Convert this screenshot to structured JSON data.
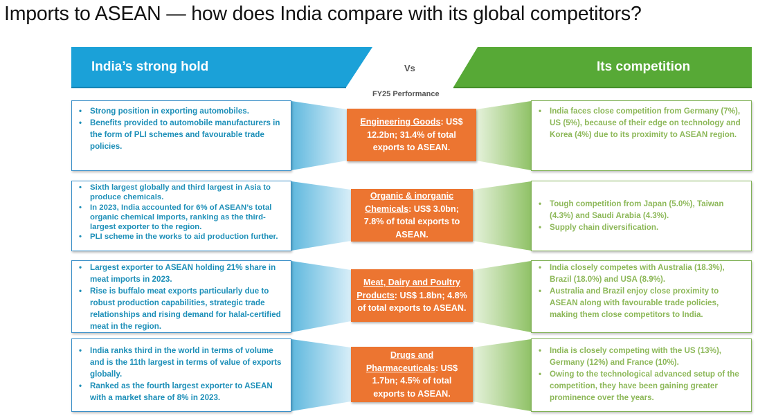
{
  "title": "Imports to ASEAN — how does India compare with its global competitors?",
  "banner": {
    "left": "India’s strong hold",
    "vs": "Vs",
    "right": "Its competition"
  },
  "period_label": "FY25 Performance",
  "colors": {
    "blue_banner": "#1ba1d8",
    "green_banner": "#57a936",
    "left_text": "#1d8fb8",
    "right_text": "#8db859",
    "center_box": "#ec7531"
  },
  "rows": [
    {
      "left": [
        "Strong position in exporting automobiles.",
        "Benefits provided to automobile manufacturers in the form of PLI schemes and favourable trade policies."
      ],
      "center": {
        "category": "Engineering Goods",
        "detail": ": US$ 12.2bn; 31.4% of total exports to ASEAN."
      },
      "right": [
        "India faces close competition from Germany (7%), US (5%), because of their edge on technology and Korea (4%) due to its proximity to ASEAN region."
      ]
    },
    {
      "left": [
        "Sixth largest globally and third largest in Asia to produce chemicals.",
        "In 2023, India accounted for 6% of ASEAN’s total organic chemical imports, ranking as the third-largest exporter to the region.",
        "PLI scheme in the works to aid production further."
      ],
      "center": {
        "category": "Organic & inorganic Chemicals",
        "detail": ": US$ 3.0bn; 7.8% of total exports to ASEAN."
      },
      "right": [
        "Tough competition from Japan (5.0%), Taiwan (4.3%) and Saudi Arabia (4.3%).",
        "Supply chain diversification."
      ]
    },
    {
      "left": [
        "Largest exporter to ASEAN holding 21% share in meat imports in 2023.",
        "Rise is buffalo meat exports particularly due to robust production capabilities, strategic trade relationships and rising demand for halal-certified meat in the region."
      ],
      "center": {
        "category": "Meat, Dairy and Poultry Products",
        "detail": ": US$ 1.8bn; 4.8% of total exports to ASEAN."
      },
      "right": [
        "India closely competes with Australia (18.3%), Brazil (18.0%) and USA (8.9%).",
        "Australia and Brazil enjoy close proximity to ASEAN along with favourable trade policies, making them close competitors to India."
      ]
    },
    {
      "left": [
        "India ranks third in the world in terms of volume and is the 11th largest in terms of value of exports globally.",
        "Ranked as the fourth largest exporter to ASEAN with a market share of 8% in 2023."
      ],
      "center": {
        "category": "Drugs and Pharmaceuticals",
        "detail": ": US$ 1.7bn; 4.5% of total exports to ASEAN."
      },
      "right": [
        "India is closely competing with the US (13%), Germany (12%) and France (10%).",
        "Owing to the technological advanced setup of the competition, they have been gaining greater prominence over the years."
      ]
    }
  ]
}
